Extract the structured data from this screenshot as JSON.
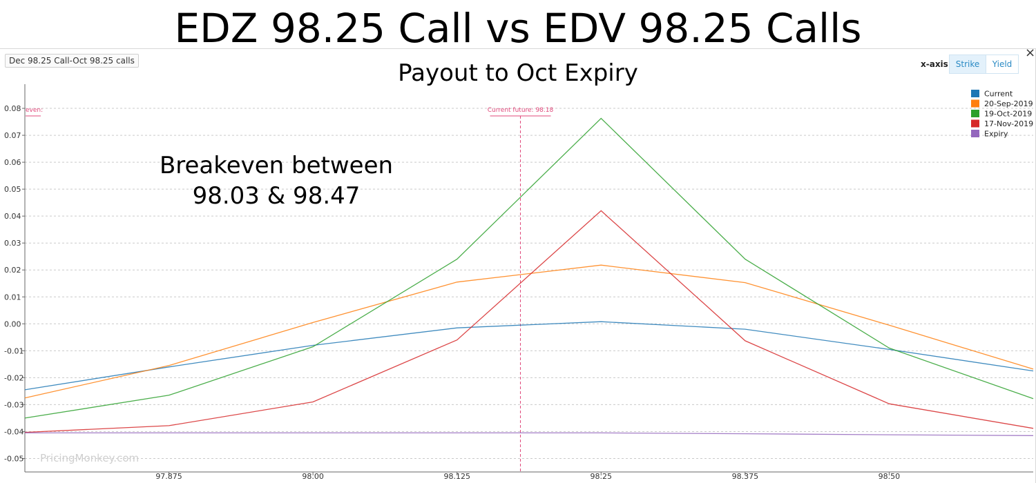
{
  "title": "EDZ 98.25 Call vs EDV 98.25 Calls",
  "subtitle": "Payout to Oct Expiry",
  "selector_label": "Dec 98.25 Call-Oct 98.25 calls",
  "xaxis_toggle": {
    "label": "x-axis:",
    "options": [
      "Strike",
      "Yield"
    ],
    "selected": "Strike"
  },
  "close_label": "×",
  "annotation": {
    "line1": "Breakeven between",
    "line2": "98.03 & 98.47"
  },
  "watermark": "PricingMonkey.com",
  "breakeven_marker": "even:",
  "current_future_label": "Current future: 98.18",
  "chart_data": {
    "type": "line",
    "x": [
      97.75,
      97.875,
      98.0,
      98.125,
      98.25,
      98.375,
      98.5,
      98.625
    ],
    "xticks": [
      97.875,
      98.0,
      98.125,
      98.25,
      98.375,
      98.5
    ],
    "xtick_labels": [
      "97.875",
      "98.00",
      "98.125",
      "98.25",
      "98.375",
      "98.50"
    ],
    "xlim": [
      97.75,
      98.625
    ],
    "ylim": [
      -0.055,
      0.09
    ],
    "yticks": [
      -0.05,
      -0.04,
      -0.03,
      -0.02,
      -0.01,
      0.0,
      0.01,
      0.02,
      0.03,
      0.04,
      0.05,
      0.06,
      0.07,
      0.08
    ],
    "ytick_labels": [
      "-0.05",
      "-0.04",
      "-0.03",
      "-0.02",
      "-0.01",
      "0.00",
      "0.01",
      "0.02",
      "0.03",
      "0.04",
      "0.05",
      "0.06",
      "0.07",
      "0.08"
    ],
    "grid": true,
    "legend_position": "top-right",
    "current_future": 98.18,
    "series": [
      {
        "name": "Current",
        "color": "#1f77b4",
        "values": [
          -0.0245,
          -0.016,
          -0.008,
          -0.0015,
          0.0008,
          -0.002,
          -0.0095,
          -0.0175
        ]
      },
      {
        "name": "20-Sep-2019",
        "color": "#ff7f0e",
        "values": [
          -0.0275,
          -0.0155,
          0.0005,
          0.0155,
          0.0218,
          0.0153,
          -0.0005,
          -0.0168
        ]
      },
      {
        "name": "19-Oct-2019",
        "color": "#2ca02c",
        "values": [
          -0.035,
          -0.0265,
          -0.0085,
          0.024,
          0.0763,
          0.024,
          -0.009,
          -0.0278
        ]
      },
      {
        "name": "17-Nov-2019",
        "color": "#d62728",
        "values": [
          -0.0403,
          -0.0378,
          -0.029,
          -0.006,
          0.042,
          -0.0063,
          -0.0297,
          -0.0388
        ]
      },
      {
        "name": "Expiry",
        "color": "#9467bd",
        "values": [
          -0.0405,
          -0.0405,
          -0.0405,
          -0.0405,
          -0.0405,
          -0.0408,
          -0.0412,
          -0.0415
        ]
      }
    ]
  }
}
